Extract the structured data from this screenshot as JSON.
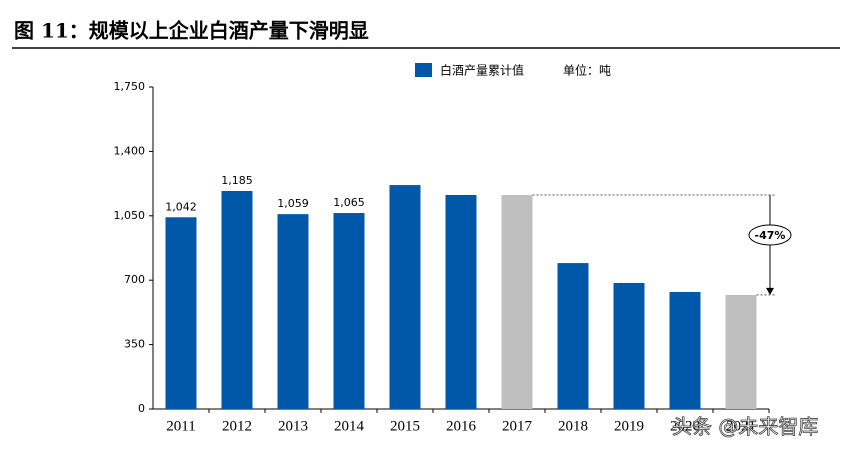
{
  "chart_data": {
    "type": "bar",
    "title": "图 11：规模以上企业白酒产量下滑明显",
    "unit_note": "单位：吨",
    "categories": [
      "2011",
      "2012",
      "2013",
      "2014",
      "2015",
      "2016",
      "2017",
      "2018",
      "2019",
      "2020",
      "2021"
    ],
    "series": [
      {
        "name": "白酒产量累计值",
        "color": "#0058a8",
        "values": [
          1042,
          1185,
          1059,
          1065,
          1217,
          1163,
          1163,
          793,
          685,
          636,
          620
        ],
        "value_labels": [
          "1,042",
          "1,185",
          "1,059",
          "1,065",
          null,
          null,
          null,
          null,
          null,
          null,
          null
        ],
        "colors": [
          "#0058a8",
          "#0058a8",
          "#0058a8",
          "#0058a8",
          "#0058a8",
          "#0058a8",
          "#bfbfbf",
          "#0058a8",
          "#0058a8",
          "#0058a8",
          "#bfbfbf"
        ]
      }
    ],
    "ylim": [
      0,
      1750
    ],
    "yticks": [
      0,
      350,
      700,
      {
        "value": 1050,
        "label": "1,050"
      },
      {
        "value": 1400,
        "label": "1,400"
      },
      {
        "value": 1750,
        "label": "1,750"
      }
    ],
    "annotation": "-47%",
    "watermark": "头条 @未来智库"
  }
}
